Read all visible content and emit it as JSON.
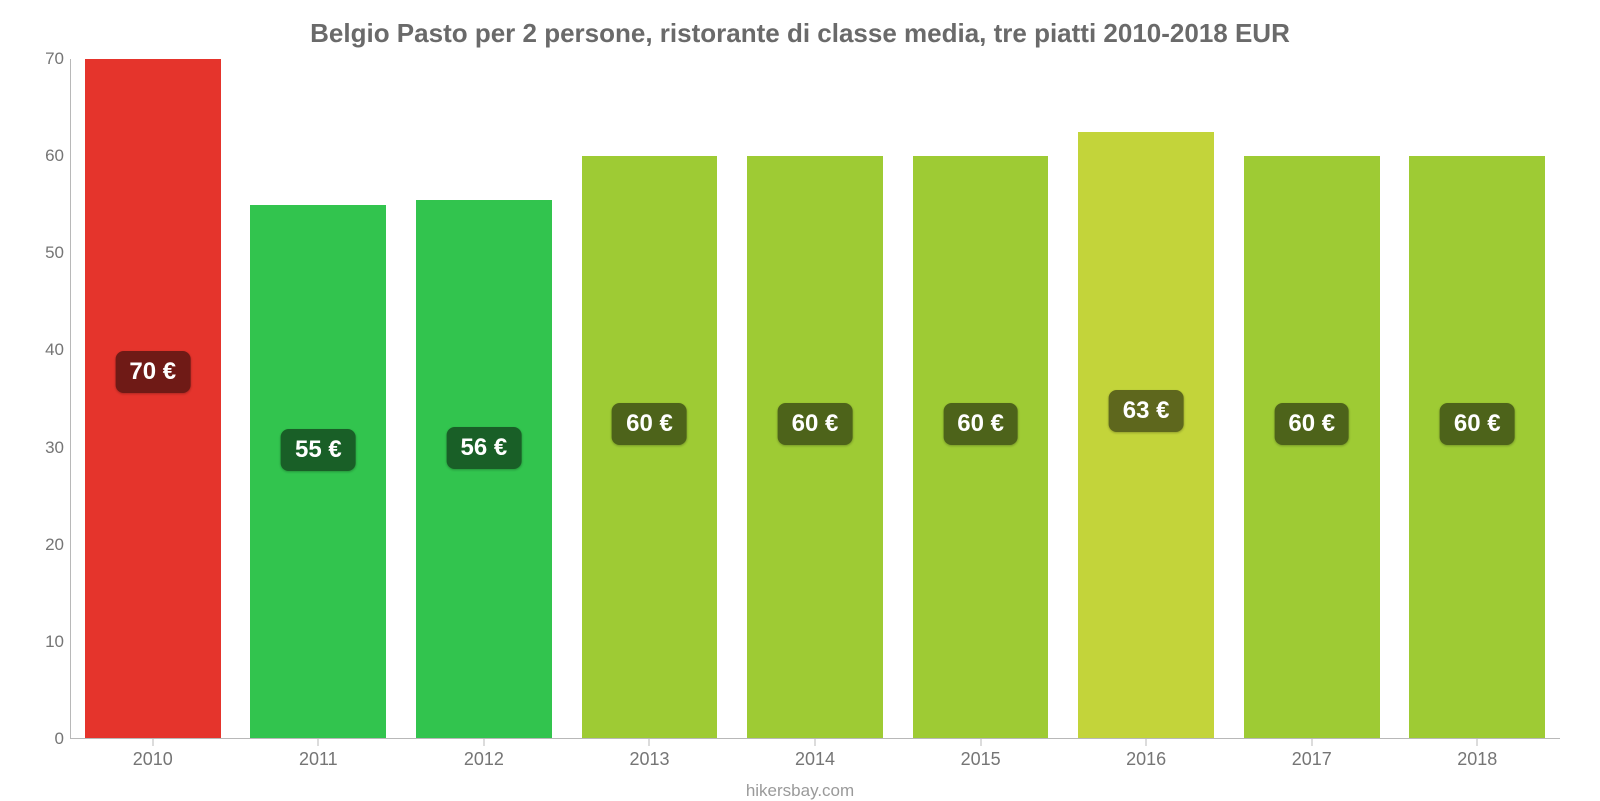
{
  "chart": {
    "type": "bar",
    "title": "Belgio Pasto per 2 persone, ristorante di classe media, tre piatti 2010-2018 EUR",
    "title_color": "#6a6a6a",
    "title_fontsize": 26,
    "source": "hikersbay.com",
    "source_color": "#9a9a9a",
    "background_color": "#ffffff",
    "axis_color": "#b8b8b8",
    "label_color": "#757575",
    "label_fontsize": 17,
    "xlabel_fontsize": 18,
    "ylim_min": 0,
    "ylim_max": 70,
    "ytick_step": 10,
    "yticks": [
      0,
      10,
      20,
      30,
      40,
      50,
      60,
      70
    ],
    "bar_width_ratio": 0.82,
    "badge_fontsize": 24,
    "badge_text_color": "#ffffff",
    "categories": [
      "2010",
      "2011",
      "2012",
      "2013",
      "2014",
      "2015",
      "2016",
      "2017",
      "2018"
    ],
    "bars": [
      {
        "value": 70,
        "label": "70 €",
        "fill": "#e5342c",
        "badge_bg": "#6f1a16"
      },
      {
        "value": 55,
        "label": "55 €",
        "fill": "#32c44e",
        "badge_bg": "#195f27"
      },
      {
        "value": 55.5,
        "label": "56 €",
        "fill": "#32c44e",
        "badge_bg": "#195f27"
      },
      {
        "value": 60,
        "label": "60 €",
        "fill": "#9ecb34",
        "badge_bg": "#4d631a"
      },
      {
        "value": 60,
        "label": "60 €",
        "fill": "#9ecb34",
        "badge_bg": "#4d631a"
      },
      {
        "value": 60,
        "label": "60 €",
        "fill": "#9ecb34",
        "badge_bg": "#4d631a"
      },
      {
        "value": 62.5,
        "label": "63 €",
        "fill": "#c3d43a",
        "badge_bg": "#5e671d"
      },
      {
        "value": 60,
        "label": "60 €",
        "fill": "#9ecb34",
        "badge_bg": "#4d631a"
      },
      {
        "value": 60,
        "label": "60 €",
        "fill": "#9ecb34",
        "badge_bg": "#4d631a"
      }
    ]
  }
}
